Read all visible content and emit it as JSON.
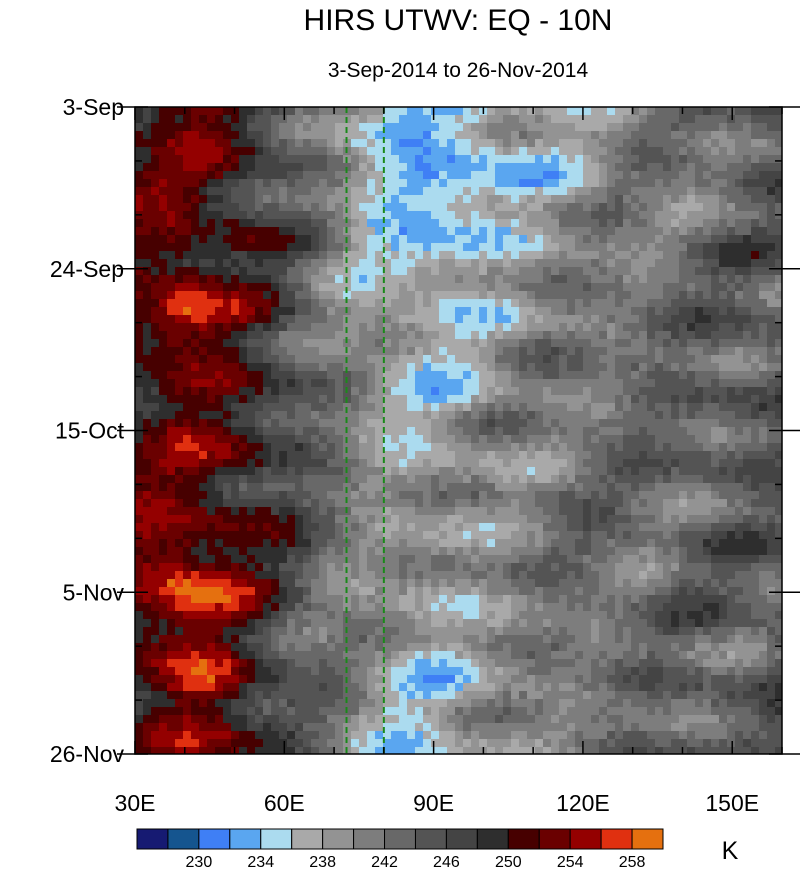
{
  "chart_data": {
    "type": "heatmap",
    "title": "HIRS UTWV: EQ - 10N",
    "subtitle": "3-Sep-2014 to 26-Nov-2014",
    "x_range": [
      30,
      160
    ],
    "x_ticks": [
      30,
      60,
      90,
      120,
      150
    ],
    "x_tick_labels": [
      "30E",
      "60E",
      "90E",
      "120E",
      "150E"
    ],
    "y_range_days": [
      0,
      84
    ],
    "y_ticks_days": [
      0,
      21,
      42,
      63,
      84
    ],
    "y_tick_labels": [
      "3-Sep",
      "24-Sep",
      "15-Oct",
      "5-Nov",
      "26-Nov"
    ],
    "reference_lines_lon": [
      72.5,
      80
    ],
    "reference_line_color": "#1a8a1a",
    "colorbar": {
      "levels": [
        228,
        230,
        232,
        234,
        236,
        238,
        240,
        242,
        244,
        246,
        248,
        250,
        252,
        254,
        256,
        258,
        260
      ],
      "labels": [
        "230",
        "234",
        "238",
        "242",
        "246",
        "250",
        "254",
        "258"
      ],
      "colors": [
        "#161a72",
        "#15558f",
        "#3f7ff5",
        "#5aa6f0",
        "#abdbef",
        "#a9a9a9",
        "#939393",
        "#7d7d7d",
        "#686868",
        "#545454",
        "#444444",
        "#2e2e2e",
        "#470000",
        "#6a0000",
        "#940000",
        "#e03010",
        "#e5700f"
      ],
      "units": "K"
    }
  }
}
